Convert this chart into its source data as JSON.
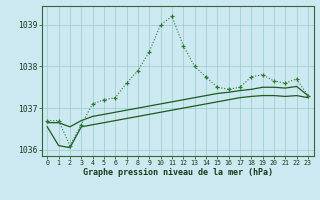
{
  "hours": [
    0,
    1,
    2,
    3,
    4,
    5,
    6,
    7,
    8,
    9,
    10,
    11,
    12,
    13,
    14,
    15,
    16,
    17,
    18,
    19,
    20,
    21,
    22,
    23
  ],
  "y_main": [
    1036.7,
    1036.7,
    1036.1,
    1036.6,
    1037.1,
    1037.2,
    1037.25,
    1037.6,
    1037.9,
    1038.35,
    1039.0,
    1039.2,
    1038.5,
    1038.0,
    1037.75,
    1037.5,
    1037.45,
    1037.5,
    1037.75,
    1037.8,
    1037.65,
    1037.6,
    1037.7,
    1037.3
  ],
  "y_upper": [
    1036.65,
    1036.65,
    1036.55,
    1036.7,
    1036.8,
    1036.85,
    1036.9,
    1036.95,
    1037.0,
    1037.05,
    1037.1,
    1037.15,
    1037.2,
    1037.25,
    1037.3,
    1037.35,
    1037.38,
    1037.42,
    1037.45,
    1037.5,
    1037.5,
    1037.48,
    1037.52,
    1037.3
  ],
  "y_lower": [
    1036.55,
    1036.1,
    1036.05,
    1036.55,
    1036.6,
    1036.65,
    1036.7,
    1036.75,
    1036.8,
    1036.85,
    1036.9,
    1036.95,
    1037.0,
    1037.05,
    1037.1,
    1037.15,
    1037.2,
    1037.25,
    1037.28,
    1037.3,
    1037.3,
    1037.28,
    1037.3,
    1037.25
  ],
  "ylim": [
    1035.85,
    1039.45
  ],
  "yticks": [
    1036,
    1037,
    1038,
    1039
  ],
  "bg_color": "#cce8f0",
  "grid_color": "#99cccc",
  "line_dark": "#1a5c1a",
  "line_mid": "#2d7a2d",
  "xlabel": "Graphe pression niveau de la mer (hPa)"
}
